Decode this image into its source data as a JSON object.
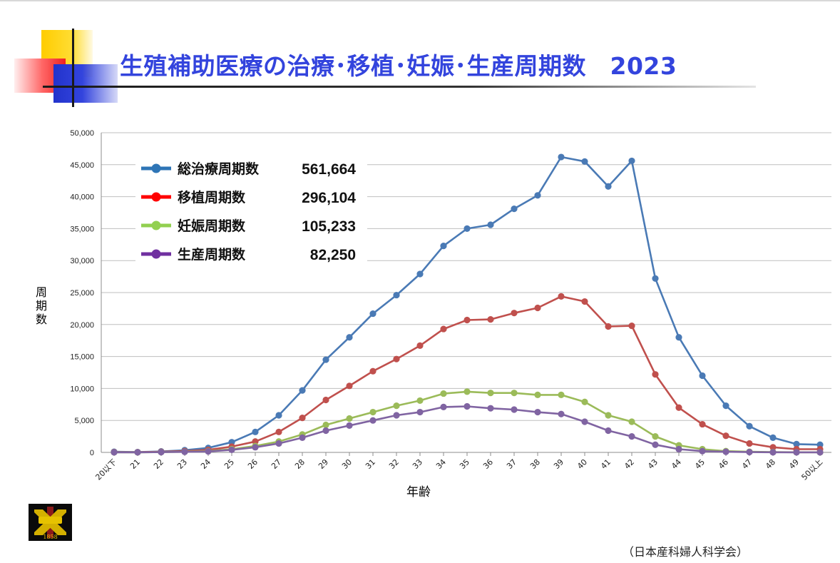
{
  "page": {
    "title": "生殖補助医療の治療･移植･妊娠･生産周期数　2023",
    "source": "（日本産科婦人科学会）",
    "logo_text": "1858"
  },
  "chart_data": {
    "type": "line",
    "xlabel": "年齢",
    "ylabel_chars": [
      "周",
      "期",
      "数"
    ],
    "ylim": [
      0,
      50000
    ],
    "yticks": [
      0,
      5000,
      10000,
      15000,
      20000,
      25000,
      30000,
      35000,
      40000,
      45000,
      50000
    ],
    "ytick_labels": [
      "0",
      "5,000",
      "10,000",
      "15,000",
      "20,000",
      "25,000",
      "30,000",
      "35,000",
      "40,000",
      "45,000",
      "50,000"
    ],
    "grid": true,
    "legend_position": "top-left",
    "categories": [
      "20以下",
      "21",
      "22",
      "23",
      "24",
      "25",
      "26",
      "27",
      "28",
      "29",
      "30",
      "31",
      "32",
      "33",
      "34",
      "35",
      "36",
      "37",
      "38",
      "39",
      "40",
      "41",
      "42",
      "43",
      "44",
      "45",
      "46",
      "47",
      "48",
      "49",
      "50以上"
    ],
    "series": [
      {
        "name": "総治療周期数",
        "total": "561,664",
        "color": "#4a7ab5",
        "marker_color": "#2e75b6",
        "values": [
          100,
          50,
          150,
          350,
          700,
          1600,
          3200,
          5800,
          9700,
          14500,
          18000,
          21700,
          24600,
          27900,
          32300,
          35000,
          35600,
          38100,
          40200,
          46200,
          45500,
          41600,
          45600,
          27200,
          18000,
          12000,
          7300,
          4100,
          2300,
          1300,
          1200
        ]
      },
      {
        "name": "移植周期数",
        "total": "296,104",
        "color": "#c0504d",
        "marker_color": "#ff0000",
        "values": [
          50,
          30,
          100,
          200,
          400,
          900,
          1700,
          3200,
          5400,
          8200,
          10400,
          12700,
          14600,
          16700,
          19300,
          20700,
          20800,
          21800,
          22600,
          24400,
          23600,
          19700,
          19800,
          12200,
          7000,
          4400,
          2600,
          1400,
          800,
          500,
          500
        ]
      },
      {
        "name": "妊娠周期数",
        "total": "105,233",
        "color": "#9bbb59",
        "marker_color": "#92d050",
        "values": [
          20,
          10,
          50,
          100,
          200,
          500,
          1000,
          1700,
          2800,
          4300,
          5300,
          6300,
          7300,
          8100,
          9200,
          9500,
          9300,
          9300,
          9000,
          9000,
          7900,
          5800,
          4800,
          2500,
          1100,
          500,
          200,
          100,
          50,
          20,
          20
        ]
      },
      {
        "name": "生産周期数",
        "total": "82,250",
        "color": "#8064a2",
        "marker_color": "#7030a0",
        "values": [
          10,
          10,
          40,
          80,
          150,
          400,
          800,
          1400,
          2300,
          3400,
          4200,
          5000,
          5800,
          6300,
          7100,
          7200,
          6900,
          6700,
          6300,
          6000,
          4800,
          3400,
          2500,
          1200,
          500,
          200,
          100,
          50,
          20,
          10,
          10
        ]
      }
    ]
  }
}
